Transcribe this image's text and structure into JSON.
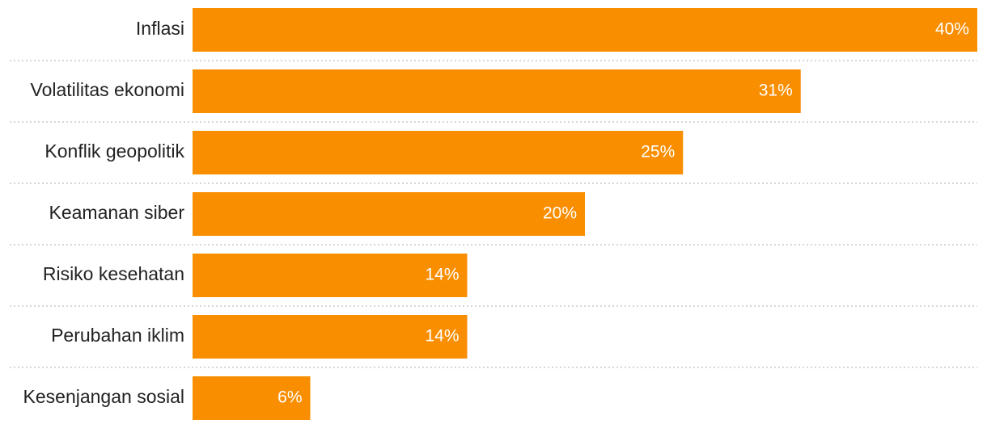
{
  "chart_data": {
    "type": "bar",
    "orientation": "horizontal",
    "categories": [
      "Inflasi",
      "Volatilitas ekonomi",
      "Konflik geopolitik",
      "Keamanan siber",
      "Risiko kesehatan",
      "Perubahan iklim",
      "Kesenjangan sosial"
    ],
    "values": [
      40,
      31,
      25,
      20,
      14,
      14,
      6
    ],
    "value_labels": [
      "40%",
      "31%",
      "25%",
      "20%",
      "14%",
      "14%",
      "6%"
    ],
    "unit": "%",
    "xlim": [
      0,
      40
    ],
    "grid": false,
    "legend": "none",
    "bar_color": "#F98E00",
    "label_color": "#FFFFFF"
  }
}
